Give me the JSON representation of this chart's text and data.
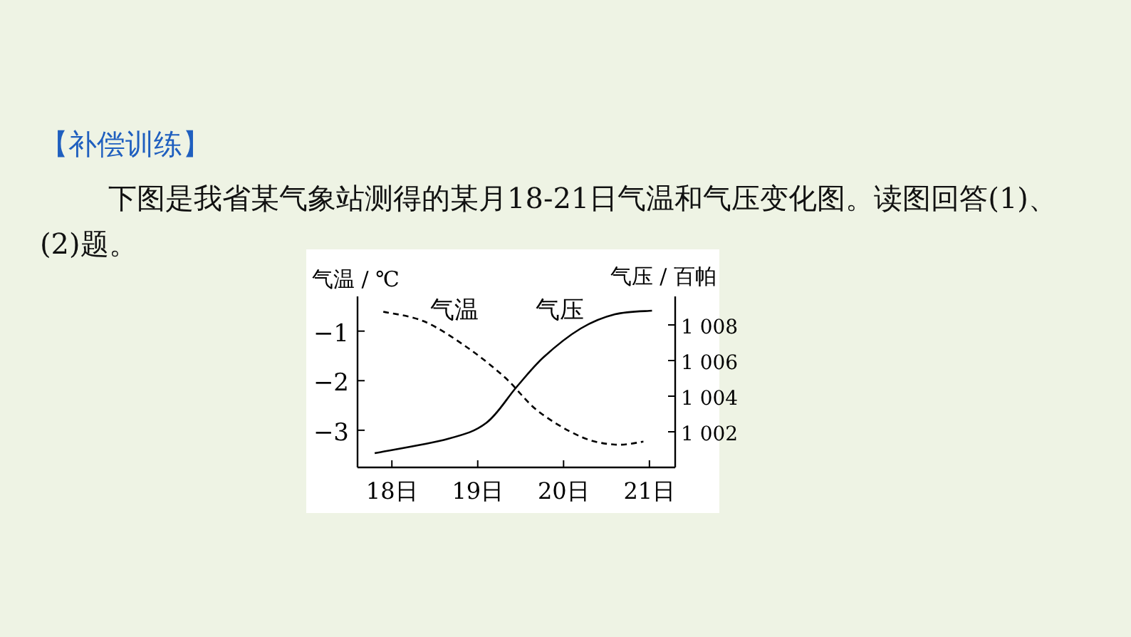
{
  "chart_data": {
    "type": "line",
    "title": "【补偿训练】",
    "subtitle": "下图是我省某气象站测得的某月18-21日气温和气压变化图。读图回答(1)、(2)题。",
    "ylabel": "气温 / ℃",
    "y2label": "气压 / 百帕",
    "xlim": [
      17.6,
      21.3
    ],
    "xticks": [
      {
        "value": 18,
        "label": "18日"
      },
      {
        "value": 19,
        "label": "19日"
      },
      {
        "value": 20,
        "label": "20日"
      },
      {
        "value": 21,
        "label": "21日"
      }
    ],
    "ylim": [
      -3.75,
      -0.3
    ],
    "yticks": [
      {
        "value": -1,
        "label": "−1"
      },
      {
        "value": -2,
        "label": "−2"
      },
      {
        "value": -3,
        "label": "−3"
      }
    ],
    "y2lim": [
      1000,
      1009.6
    ],
    "y2ticks": [
      {
        "value": 1002,
        "label": "1 002"
      },
      {
        "value": 1004,
        "label": "1 004"
      },
      {
        "value": 1006,
        "label": "1 006"
      },
      {
        "value": 1008,
        "label": "1 008"
      }
    ],
    "grid": false,
    "marker": "none",
    "series": [
      {
        "name": "气温",
        "color": "#000000",
        "line_style": "dashed",
        "x": [
          17.9,
          18.37,
          18.87,
          19.32,
          19.7,
          20.2,
          20.6,
          20.93
        ],
        "values": [
          -0.61,
          -0.8,
          -1.32,
          -1.94,
          -2.61,
          -3.13,
          -3.29,
          -3.23
        ]
      },
      {
        "name": "气压",
        "color": "#000000",
        "line_style": "solid",
        "axis": "y2",
        "x": [
          17.8,
          18.65,
          19.1,
          19.45,
          19.77,
          20.2,
          20.6,
          21.03
        ],
        "values": [
          1000.8,
          1001.6,
          1002.5,
          1004.5,
          1006.2,
          1007.8,
          1008.6,
          1008.8
        ]
      }
    ]
  }
}
